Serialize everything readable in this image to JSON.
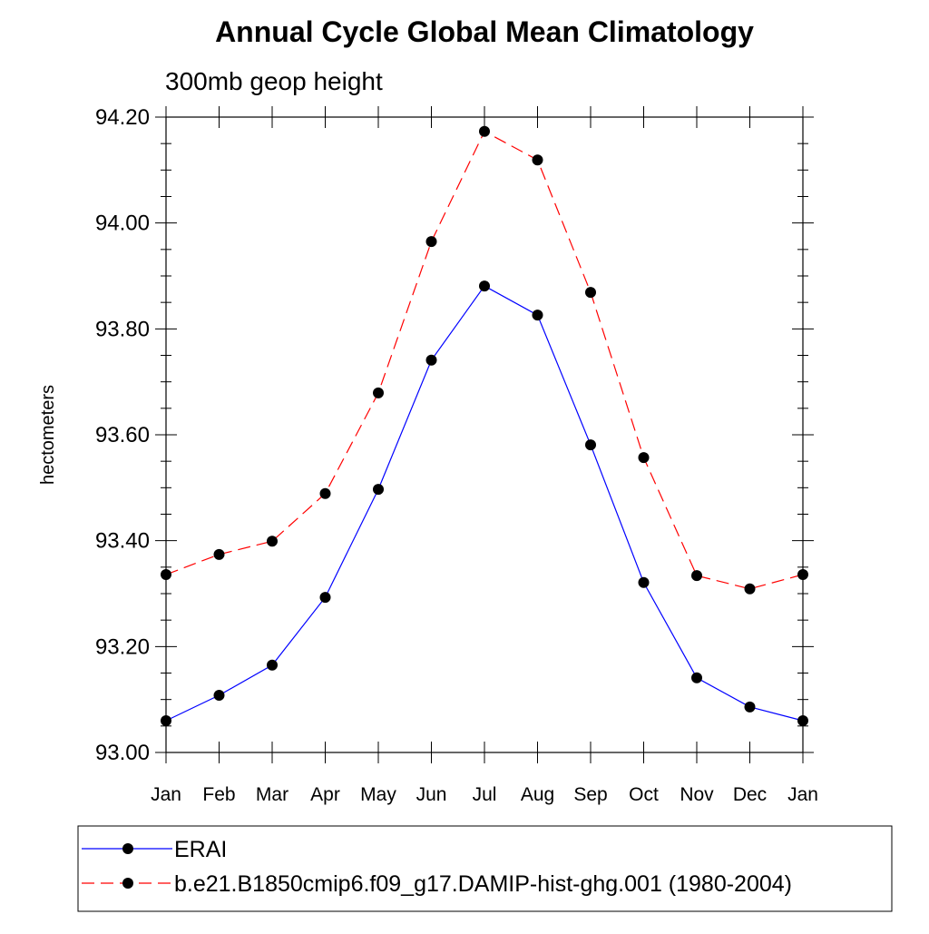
{
  "chart_data": {
    "type": "line",
    "title": "Annual Cycle Global Mean Climatology",
    "subtitle": "300mb geop height",
    "xlabel": "",
    "ylabel": "hectometers",
    "categories": [
      "Jan",
      "Feb",
      "Mar",
      "Apr",
      "May",
      "Jun",
      "Jul",
      "Aug",
      "Sep",
      "Oct",
      "Nov",
      "Dec",
      "Jan"
    ],
    "ylim": [
      93.0,
      94.2
    ],
    "yticks": [
      "93.00",
      "93.20",
      "93.40",
      "93.60",
      "93.80",
      "94.00",
      "94.20"
    ],
    "ytick_values": [
      93.0,
      93.2,
      93.4,
      93.6,
      93.8,
      94.0,
      94.2
    ],
    "grid": false,
    "legend_position": "bottom",
    "series": [
      {
        "name": "ERAI",
        "color": "#0000ff",
        "dash": "solid",
        "values": [
          93.06,
          93.108,
          93.165,
          93.293,
          93.497,
          93.741,
          93.881,
          93.826,
          93.581,
          93.321,
          93.141,
          93.086,
          93.06
        ]
      },
      {
        "name": "b.e21.B1850cmip6.f09_g17.DAMIP-hist-ghg.001 (1980-2004)",
        "color": "#ff0000",
        "dash": "dashed",
        "values": [
          93.336,
          93.374,
          93.399,
          93.489,
          93.679,
          93.965,
          94.173,
          94.119,
          93.869,
          93.557,
          93.334,
          93.309,
          93.336
        ]
      }
    ]
  }
}
